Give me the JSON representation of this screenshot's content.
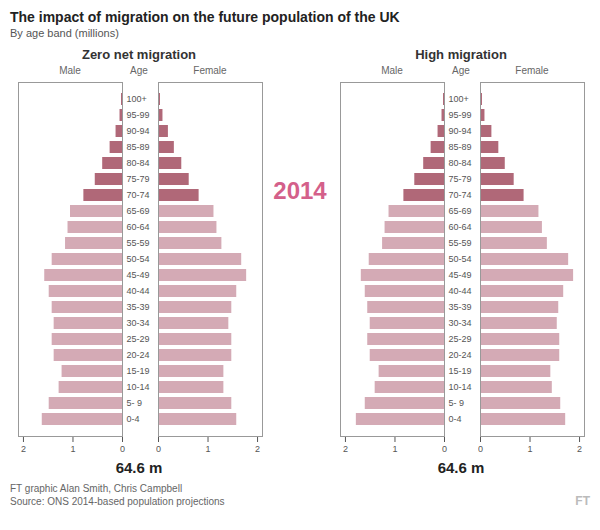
{
  "title": "The impact of migration on the future population of the UK",
  "subtitle": "By age band (millions)",
  "annotations": [
    {
      "text": "2014",
      "color": "#d4608a"
    }
  ],
  "caption": [
    "FT graphic Alan Smith, Chris Campbell",
    "Source: ONS 2014-based population projections"
  ],
  "credit": "FT",
  "chart_data": [
    {
      "type": "bar",
      "orientation": "horizontal",
      "title": "Zero net migration",
      "ylabel": "Age",
      "categories": [
        "100+",
        "95-99",
        "90-94",
        "85-89",
        "80-84",
        "75-79",
        "70-74",
        "65-69",
        "60-64",
        "55-59",
        "50-54",
        "45-49",
        "40-44",
        "35-39",
        "30-34",
        "25-29",
        "20-24",
        "15-19",
        "10-14",
        "5- 9",
        "0-4"
      ],
      "series": [
        {
          "name": "Male",
          "values": [
            0.02,
            0.05,
            0.13,
            0.25,
            0.4,
            0.55,
            0.78,
            1.05,
            1.1,
            1.15,
            1.42,
            1.57,
            1.48,
            1.42,
            1.38,
            1.42,
            1.38,
            1.22,
            1.28,
            1.48,
            1.62
          ]
        },
        {
          "name": "Female",
          "values": [
            0.04,
            0.09,
            0.2,
            0.32,
            0.47,
            0.62,
            0.82,
            1.12,
            1.18,
            1.28,
            1.68,
            1.78,
            1.58,
            1.48,
            1.42,
            1.48,
            1.48,
            1.32,
            1.32,
            1.48,
            1.58
          ]
        }
      ],
      "colors": [
        "#b06878",
        "#b06878",
        "#b06878",
        "#b06878",
        "#b06878",
        "#b06878",
        "#b06878",
        "#d4aab5",
        "#d4aab5",
        "#d4aab5",
        "#d4aab5",
        "#d4aab5",
        "#d4aab5",
        "#d4aab5",
        "#d4aab5",
        "#d4aab5",
        "#d4aab5",
        "#d4aab5",
        "#d4aab5",
        "#d4aab5",
        "#d4aab5"
      ],
      "xlim": [
        0,
        2.1
      ],
      "xticks": [
        0,
        1,
        2
      ],
      "annotations": [
        "64.6 m"
      ]
    },
    {
      "type": "bar",
      "orientation": "horizontal",
      "title": "High migration",
      "ylabel": "Age",
      "categories": [
        "100+",
        "95-99",
        "90-94",
        "85-89",
        "80-84",
        "75-79",
        "70-74",
        "65-69",
        "60-64",
        "55-59",
        "50-54",
        "45-49",
        "40-44",
        "35-39",
        "30-34",
        "25-29",
        "20-24",
        "15-19",
        "10-14",
        "5- 9",
        "0-4"
      ],
      "series": [
        {
          "name": "Male",
          "values": [
            0.02,
            0.05,
            0.13,
            0.27,
            0.42,
            0.6,
            0.82,
            1.12,
            1.2,
            1.25,
            1.52,
            1.68,
            1.6,
            1.55,
            1.5,
            1.55,
            1.5,
            1.32,
            1.4,
            1.6,
            1.78
          ]
        },
        {
          "name": "Female",
          "values": [
            0.04,
            0.09,
            0.23,
            0.37,
            0.5,
            0.68,
            0.88,
            1.18,
            1.25,
            1.35,
            1.78,
            1.88,
            1.68,
            1.58,
            1.55,
            1.6,
            1.6,
            1.42,
            1.45,
            1.62,
            1.72
          ]
        }
      ],
      "colors": [
        "#b06878",
        "#b06878",
        "#b06878",
        "#b06878",
        "#b06878",
        "#b06878",
        "#b06878",
        "#d4aab5",
        "#d4aab5",
        "#d4aab5",
        "#d4aab5",
        "#d4aab5",
        "#d4aab5",
        "#d4aab5",
        "#d4aab5",
        "#d4aab5",
        "#d4aab5",
        "#d4aab5",
        "#d4aab5",
        "#d4aab5",
        "#d4aab5"
      ],
      "xlim": [
        0,
        2.1
      ],
      "xticks": [
        0,
        1,
        2
      ],
      "annotations": [
        "64.6 m"
      ]
    }
  ]
}
